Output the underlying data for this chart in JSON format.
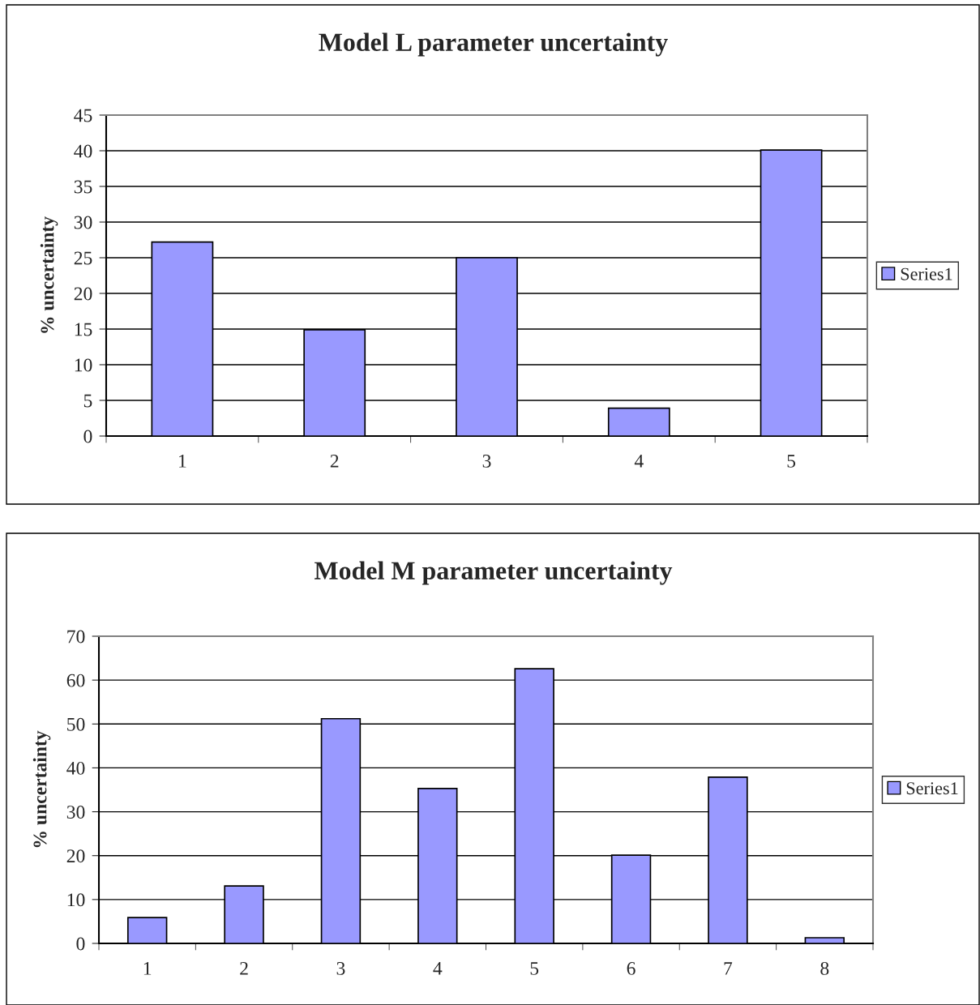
{
  "chart_data": [
    {
      "type": "bar",
      "title": "Model L parameter uncertainty",
      "ylabel": "% uncertainty",
      "categories": [
        "1",
        "2",
        "3",
        "4",
        "5"
      ],
      "series": [
        {
          "name": "Series1",
          "color": "#9999ff",
          "values": [
            27.2,
            14.9,
            25,
            3.9,
            40.1
          ]
        }
      ],
      "ylim": [
        0,
        45
      ],
      "yticks": [
        0,
        5,
        10,
        15,
        20,
        25,
        30,
        35,
        40,
        45
      ],
      "grid": "y",
      "legend": "right"
    },
    {
      "type": "bar",
      "title": "Model M parameter uncertainty",
      "ylabel": "% uncertainty",
      "categories": [
        "1",
        "2",
        "3",
        "4",
        "5",
        "6",
        "7",
        "8"
      ],
      "series": [
        {
          "name": "Series1",
          "color": "#9999ff",
          "values": [
            5.9,
            13.1,
            51.2,
            35.3,
            62.6,
            20.1,
            37.9,
            1.3
          ]
        }
      ],
      "ylim": [
        0,
        70
      ],
      "yticks": [
        0,
        10,
        20,
        30,
        40,
        50,
        60,
        70
      ],
      "grid": "y",
      "legend": "right"
    }
  ]
}
